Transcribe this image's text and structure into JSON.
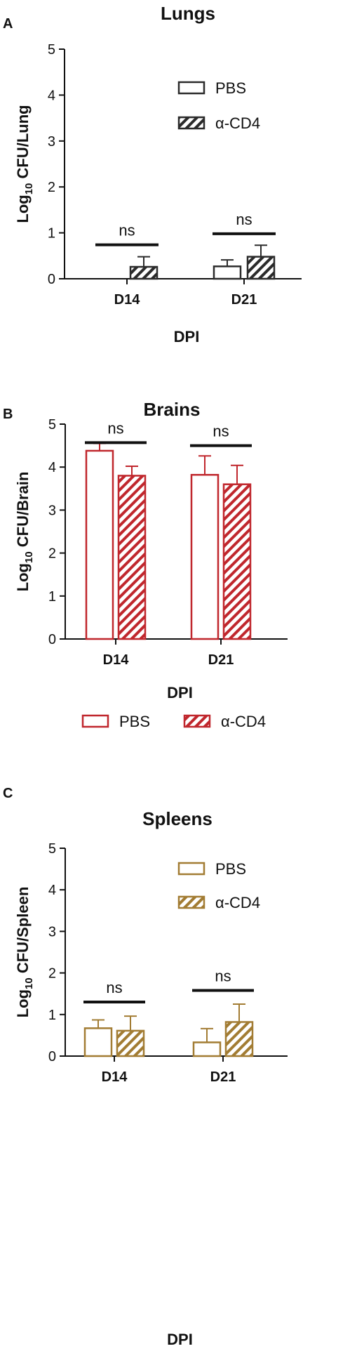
{
  "chart_data": [
    {
      "panel_label": "A",
      "type": "bar",
      "title": "Lungs",
      "xlabel": "DPI",
      "ylabel": {
        "prefix": "Log",
        "sub": "10",
        "suffix": " CFU/Lung"
      },
      "categories": [
        "D14",
        "D21"
      ],
      "ylim": [
        0,
        5
      ],
      "yticks": [
        "0",
        "1",
        "2",
        "3",
        "4",
        "5"
      ],
      "series": [
        {
          "name": "PBS",
          "pattern": "open",
          "values": [
            0,
            0.27
          ],
          "errors": [
            0,
            0.14
          ]
        },
        {
          "name": "α-CD4",
          "pattern": "hatched",
          "values": [
            0.26,
            0.48
          ],
          "errors": [
            0.22,
            0.25
          ]
        }
      ],
      "significance": [
        {
          "category": "D14",
          "label": "ns",
          "y": 0.74
        },
        {
          "category": "D21",
          "label": "ns",
          "y": 0.98
        }
      ],
      "color": "#2b2b2b",
      "legend": "top-right"
    },
    {
      "panel_label": "B",
      "type": "bar",
      "title": "Brains",
      "xlabel": "DPI",
      "ylabel": {
        "prefix": "Log",
        "sub": "10",
        "suffix": " CFU/Brain"
      },
      "categories": [
        "D14",
        "D21"
      ],
      "ylim": [
        0,
        5
      ],
      "yticks": [
        "0",
        "1",
        "2",
        "3",
        "4",
        "5"
      ],
      "series": [
        {
          "name": "PBS",
          "pattern": "open",
          "values": [
            4.38,
            3.82
          ],
          "errors": [
            0.17,
            0.44
          ]
        },
        {
          "name": "α-CD4",
          "pattern": "hatched",
          "values": [
            3.8,
            3.6
          ],
          "errors": [
            0.22,
            0.44
          ]
        }
      ],
      "significance": [
        {
          "category": "D14",
          "label": "ns",
          "y": 4.57
        },
        {
          "category": "D21",
          "label": "ns",
          "y": 4.5
        }
      ],
      "color": "#c0272d",
      "legend": "bottom"
    },
    {
      "panel_label": "C",
      "type": "bar",
      "title": "Spleens",
      "xlabel": "DPI",
      "ylabel": {
        "prefix": "Log",
        "sub": "10",
        "suffix": " CFU/Spleen"
      },
      "categories": [
        "D14",
        "D21"
      ],
      "ylim": [
        0,
        5
      ],
      "yticks": [
        "0",
        "1",
        "2",
        "3",
        "4",
        "5"
      ],
      "series": [
        {
          "name": "PBS",
          "pattern": "open",
          "values": [
            0.67,
            0.33
          ],
          "errors": [
            0.2,
            0.33
          ]
        },
        {
          "name": "α-CD4",
          "pattern": "hatched",
          "values": [
            0.61,
            0.82
          ],
          "errors": [
            0.35,
            0.43
          ]
        }
      ],
      "significance": [
        {
          "category": "D14",
          "label": "ns",
          "y": 1.3
        },
        {
          "category": "D21",
          "label": "ns",
          "y": 1.58
        }
      ],
      "color": "#a27c33",
      "legend": "top-right"
    }
  ]
}
